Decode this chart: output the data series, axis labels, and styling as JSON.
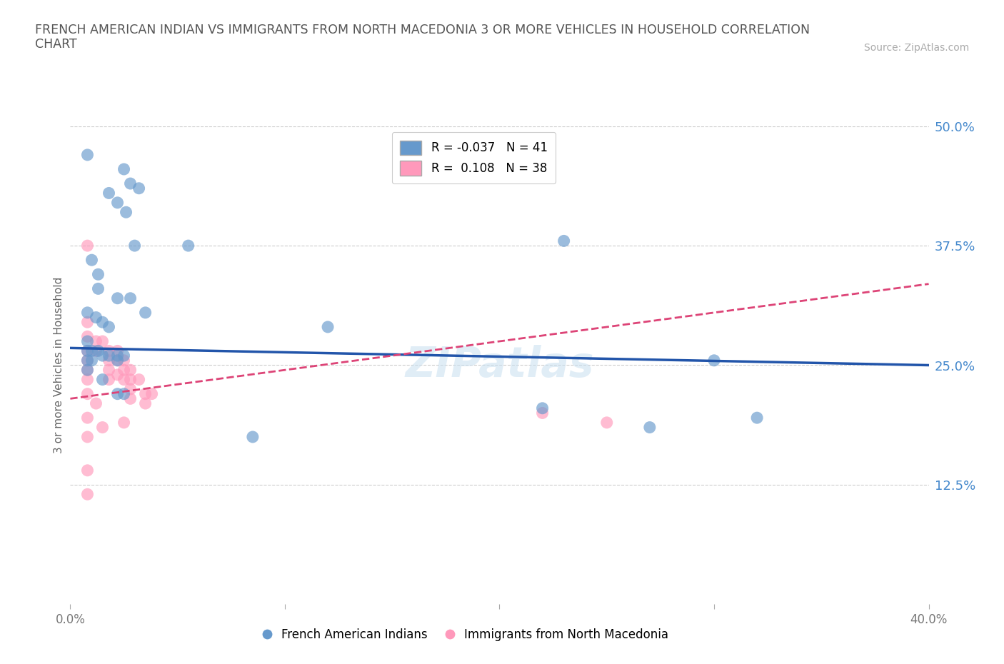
{
  "title": "FRENCH AMERICAN INDIAN VS IMMIGRANTS FROM NORTH MACEDONIA 3 OR MORE VEHICLES IN HOUSEHOLD CORRELATION\nCHART",
  "source_text": "Source: ZipAtlas.com",
  "ylabel": "3 or more Vehicles in Household",
  "xlim": [
    0.0,
    0.4
  ],
  "ylim": [
    0.0,
    0.5
  ],
  "xticks": [
    0.0,
    0.1,
    0.2,
    0.3,
    0.4
  ],
  "xticklabels": [
    "0.0%",
    "",
    "",
    "",
    "40.0%"
  ],
  "ytick_right_labels": [
    "50.0%",
    "37.5%",
    "25.0%",
    "12.5%"
  ],
  "ytick_right_vals": [
    0.5,
    0.375,
    0.25,
    0.125
  ],
  "grid_color": "#cccccc",
  "background_color": "#ffffff",
  "blue_color": "#6699cc",
  "pink_color": "#ff99bb",
  "blue_line_color": "#2255aa",
  "pink_line_color": "#dd4477",
  "R_blue": -0.037,
  "N_blue": 41,
  "R_pink": 0.108,
  "N_pink": 38,
  "legend_label_blue": "French American Indians",
  "legend_label_pink": "Immigrants from North Macedonia",
  "blue_line_x0": 0.0,
  "blue_line_y0": 0.268,
  "blue_line_x1": 0.4,
  "blue_line_y1": 0.25,
  "pink_line_x0": 0.0,
  "pink_line_y0": 0.215,
  "pink_line_x1": 0.4,
  "pink_line_y1": 0.335,
  "blue_scatter_x": [
    0.008,
    0.025,
    0.028,
    0.032,
    0.018,
    0.022,
    0.026,
    0.03,
    0.055,
    0.01,
    0.013,
    0.013,
    0.022,
    0.028,
    0.035,
    0.008,
    0.012,
    0.015,
    0.018,
    0.008,
    0.008,
    0.008,
    0.01,
    0.01,
    0.013,
    0.015,
    0.018,
    0.022,
    0.022,
    0.025,
    0.008,
    0.015,
    0.022,
    0.025,
    0.12,
    0.23,
    0.3,
    0.32,
    0.27,
    0.22,
    0.085
  ],
  "blue_scatter_y": [
    0.47,
    0.455,
    0.44,
    0.435,
    0.43,
    0.42,
    0.41,
    0.375,
    0.375,
    0.36,
    0.345,
    0.33,
    0.32,
    0.32,
    0.305,
    0.305,
    0.3,
    0.295,
    0.29,
    0.275,
    0.265,
    0.255,
    0.265,
    0.255,
    0.265,
    0.26,
    0.26,
    0.26,
    0.255,
    0.26,
    0.245,
    0.235,
    0.22,
    0.22,
    0.29,
    0.38,
    0.255,
    0.195,
    0.185,
    0.205,
    0.175
  ],
  "pink_scatter_x": [
    0.008,
    0.008,
    0.008,
    0.008,
    0.008,
    0.008,
    0.008,
    0.008,
    0.012,
    0.012,
    0.015,
    0.018,
    0.018,
    0.018,
    0.018,
    0.022,
    0.022,
    0.022,
    0.025,
    0.025,
    0.025,
    0.028,
    0.028,
    0.028,
    0.028,
    0.032,
    0.035,
    0.035,
    0.038,
    0.008,
    0.008,
    0.012,
    0.015,
    0.22,
    0.25,
    0.008,
    0.008,
    0.025
  ],
  "pink_scatter_y": [
    0.375,
    0.295,
    0.28,
    0.265,
    0.255,
    0.245,
    0.235,
    0.22,
    0.275,
    0.265,
    0.275,
    0.265,
    0.255,
    0.245,
    0.235,
    0.265,
    0.255,
    0.24,
    0.255,
    0.245,
    0.235,
    0.245,
    0.235,
    0.225,
    0.215,
    0.235,
    0.22,
    0.21,
    0.22,
    0.195,
    0.175,
    0.21,
    0.185,
    0.2,
    0.19,
    0.14,
    0.115,
    0.19
  ]
}
